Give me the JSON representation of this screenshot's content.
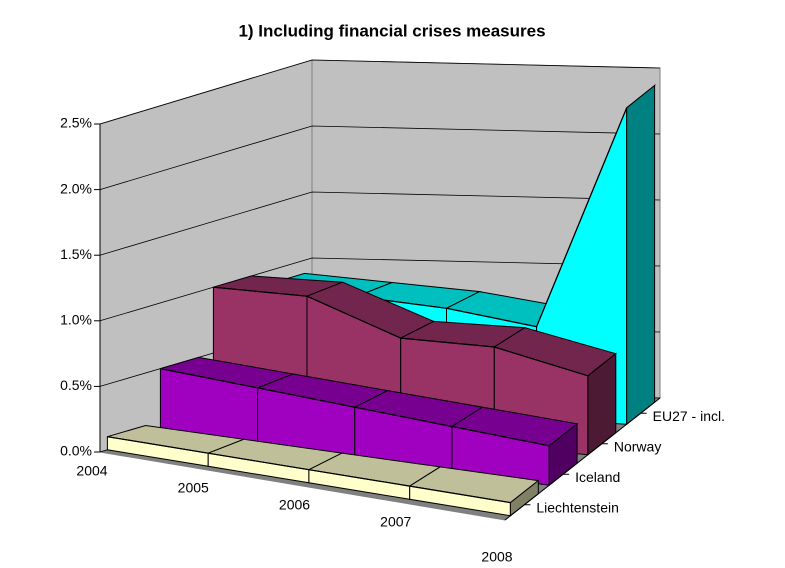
{
  "chart_data": {
    "type": "line3d",
    "title": "1) Including financial crises measures",
    "categories": [
      "2004",
      "2005",
      "2006",
      "2007",
      "2008"
    ],
    "series": [
      {
        "name": "EU27 - incl.",
        "color": "#00ffff",
        "values": [
          0.9,
          0.85,
          0.8,
          0.7,
          2.4
        ]
      },
      {
        "name": "Norway",
        "color": "#993366",
        "values": [
          1.0,
          1.0,
          0.75,
          0.75,
          0.6
        ]
      },
      {
        "name": "Iceland",
        "color": "#a000c0",
        "values": [
          0.5,
          0.45,
          0.4,
          0.35,
          0.3
        ]
      },
      {
        "name": "Liechtenstein",
        "color": "#ffffcc",
        "values": [
          0.1,
          0.1,
          0.1,
          0.1,
          0.1
        ]
      }
    ],
    "ylim": [
      0,
      2.5
    ],
    "yticks": [
      {
        "value": 0,
        "label": "0.0%"
      },
      {
        "value": 0.5,
        "label": "0.5%"
      },
      {
        "value": 1.0,
        "label": "1.0%"
      },
      {
        "value": 1.5,
        "label": "1.5%"
      },
      {
        "value": 2.0,
        "label": "2.0%"
      },
      {
        "value": 2.5,
        "label": "2.5%"
      }
    ],
    "grid": true
  }
}
